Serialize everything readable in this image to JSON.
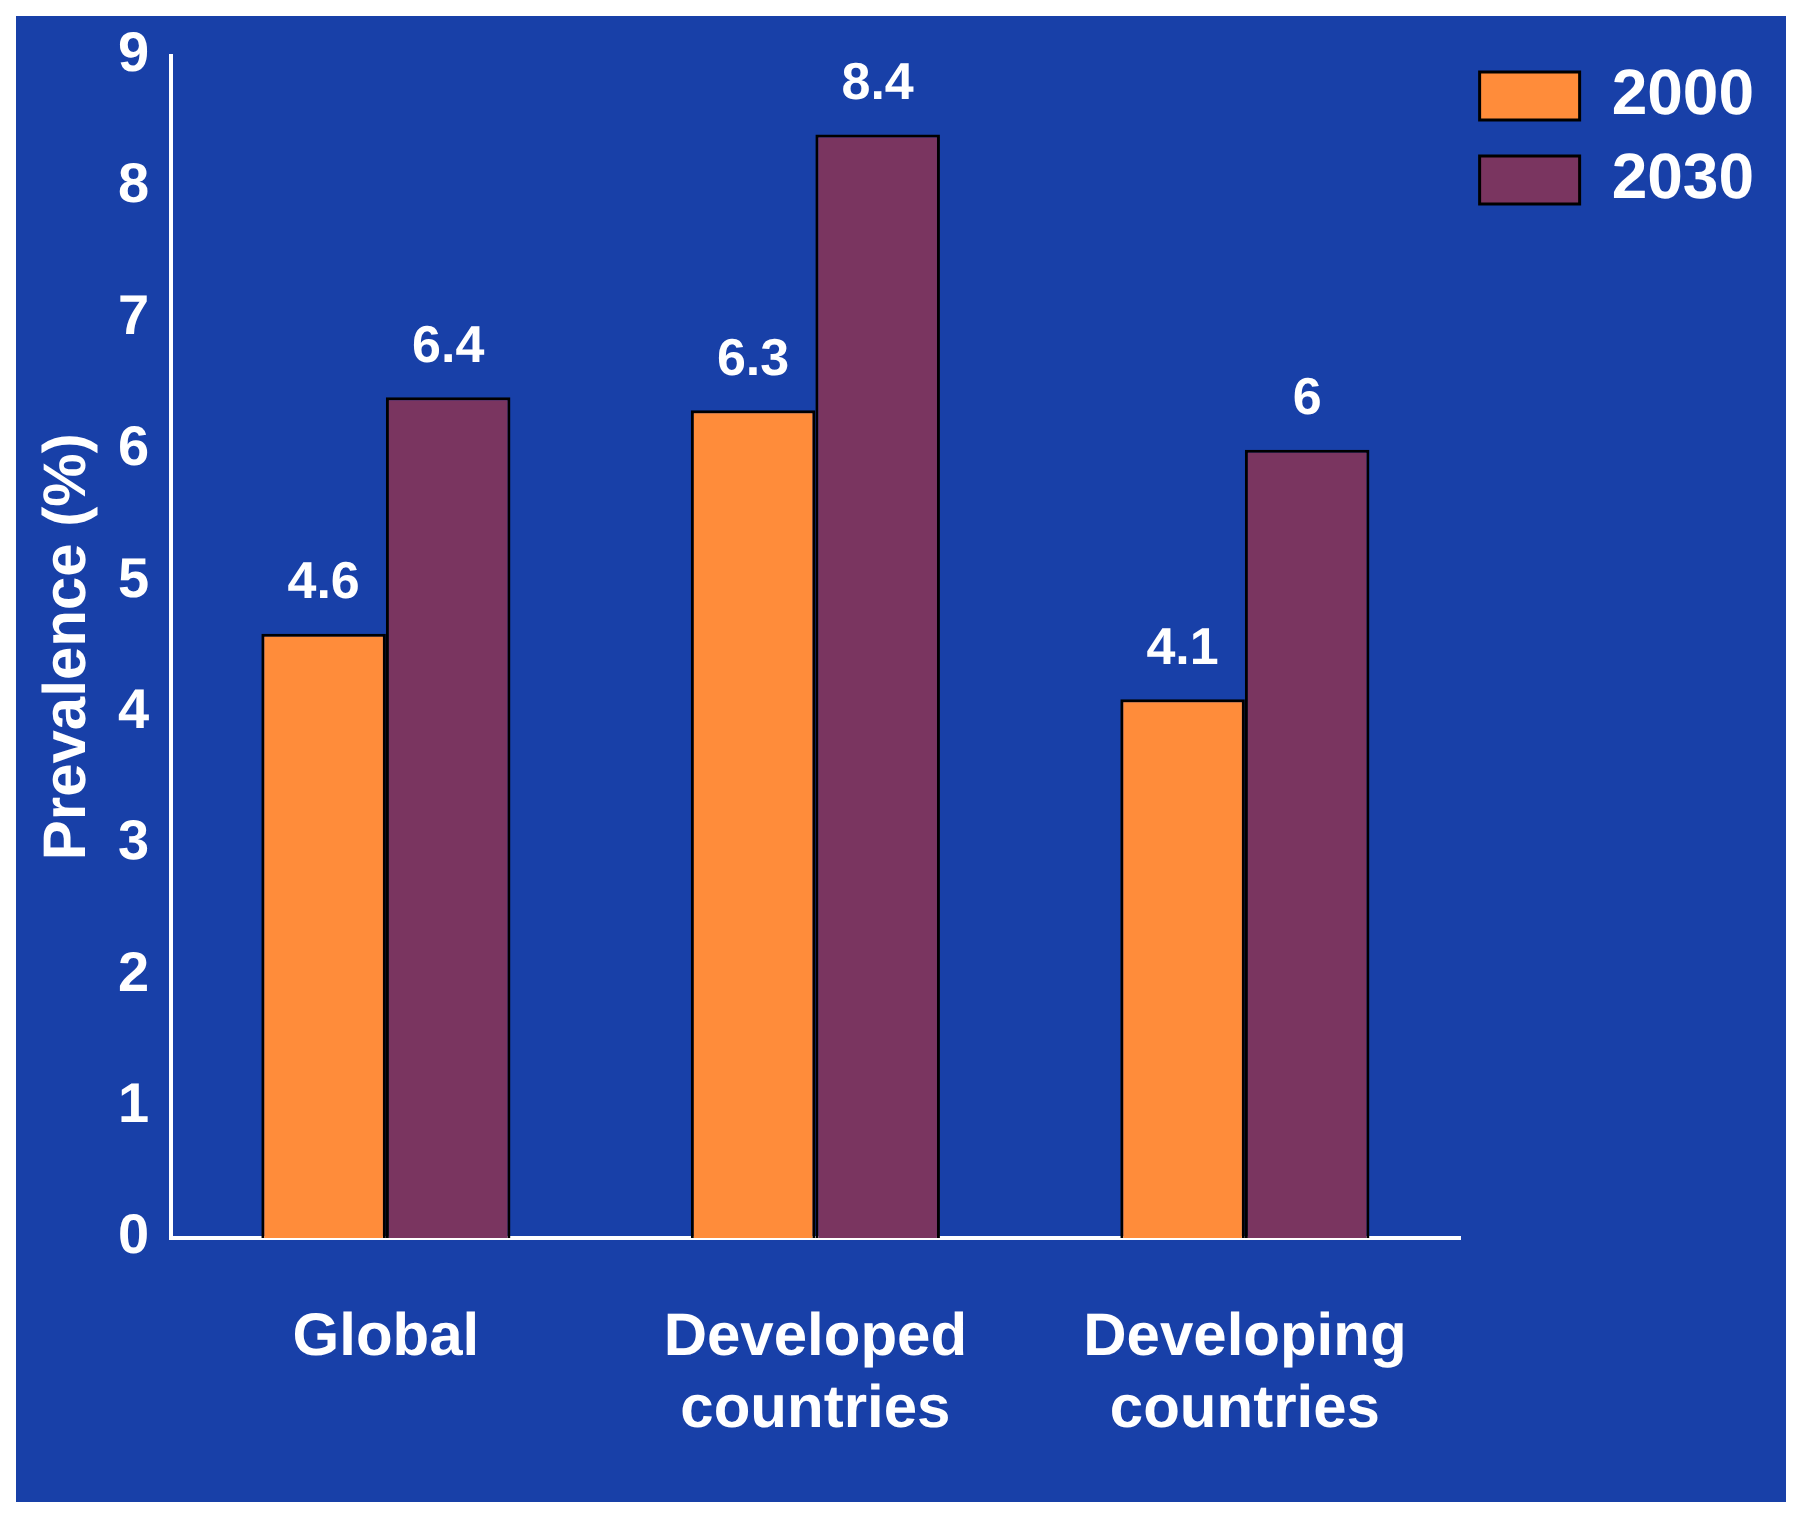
{
  "chart_data": {
    "type": "bar",
    "ylabel": "Prevalence (%)",
    "categories": [
      "Global",
      "Developed countries",
      "Developing countries"
    ],
    "series": [
      {
        "name": "2000",
        "color": "#ff8c3a",
        "values": [
          4.6,
          6.3,
          4.1
        ]
      },
      {
        "name": "2030",
        "color": "#7a3560",
        "values": [
          6.4,
          8.4,
          6
        ]
      }
    ],
    "ylim": [
      0,
      9
    ],
    "yticks": [
      0,
      1,
      2,
      3,
      4,
      5,
      6,
      7,
      8,
      9
    ],
    "grid": false,
    "legend": "top right",
    "data_labels": true
  }
}
